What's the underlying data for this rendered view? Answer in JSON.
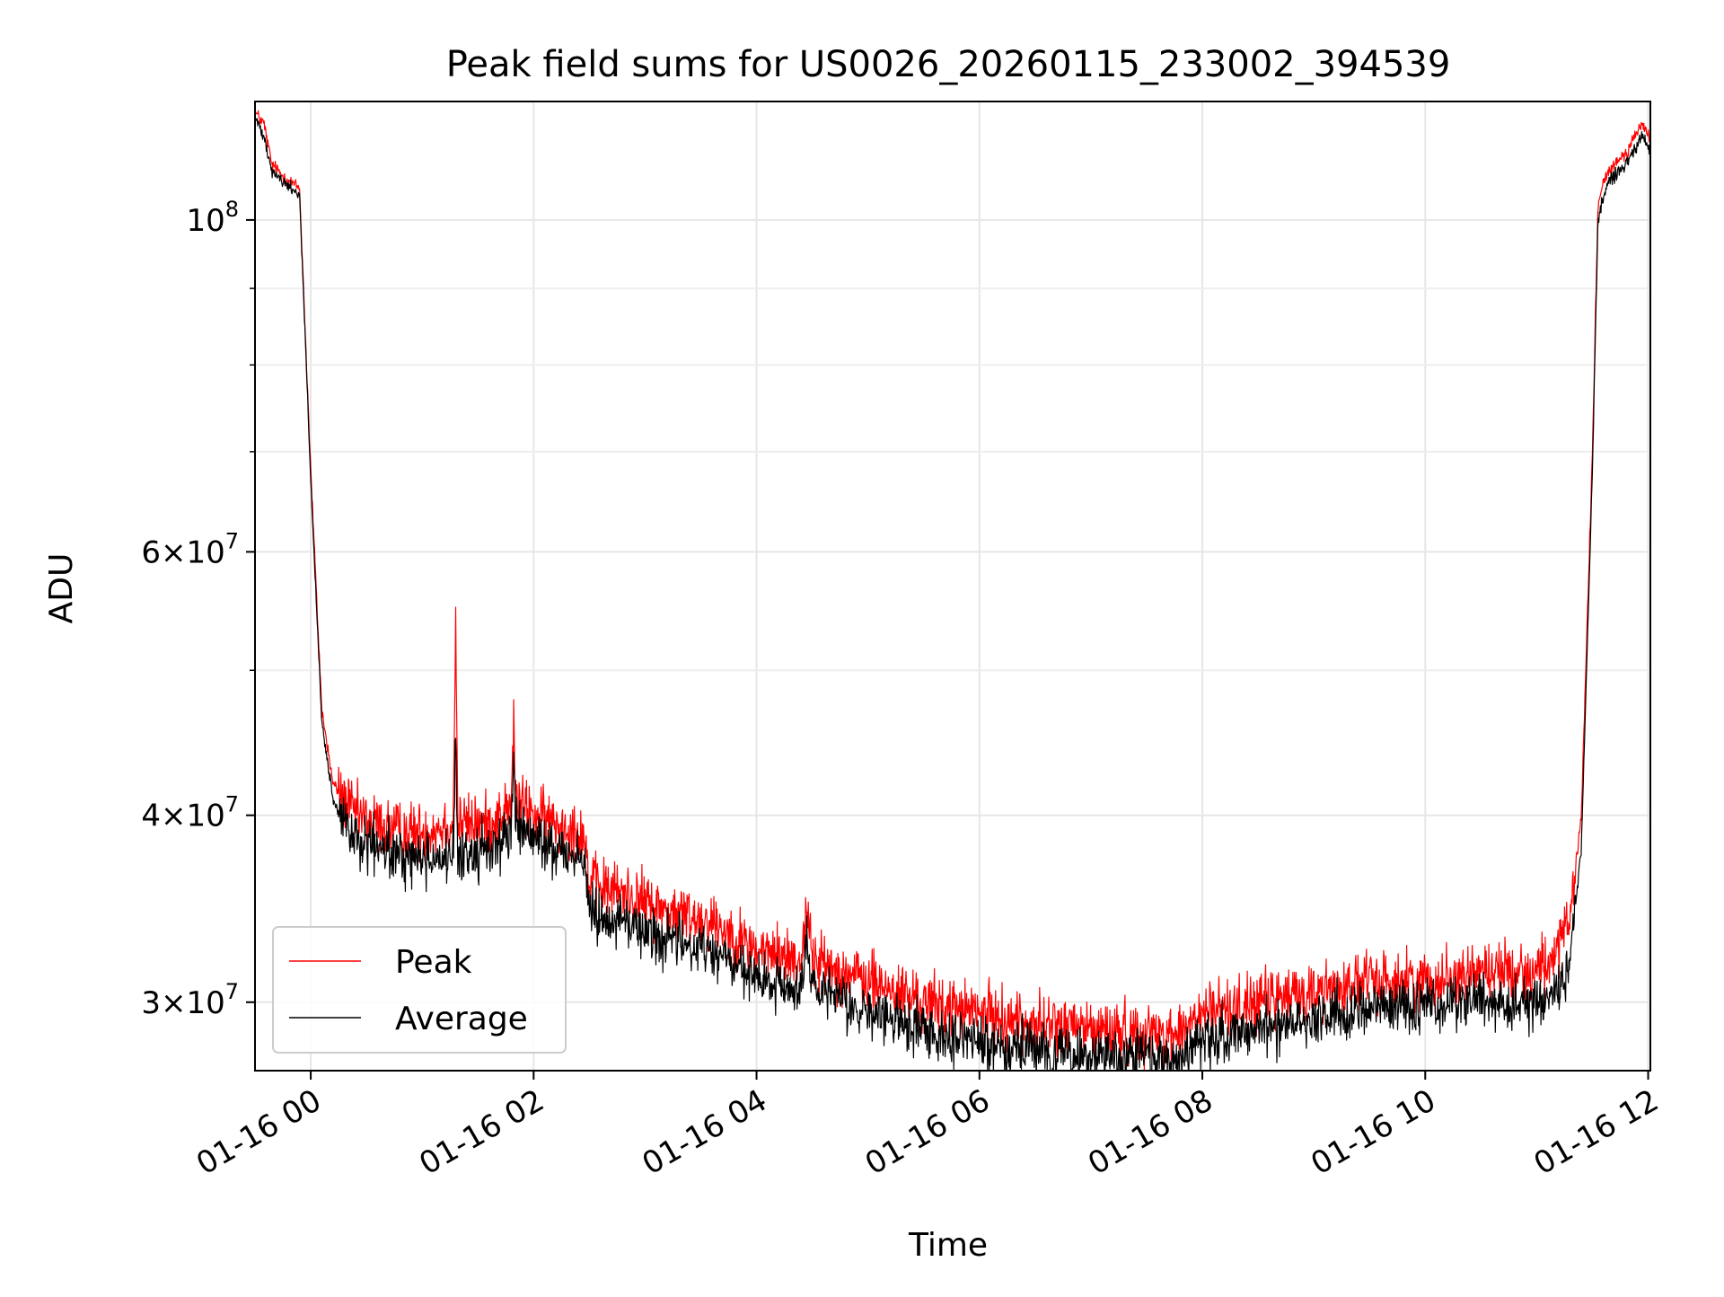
{
  "chart_data": {
    "type": "line",
    "title": "Peak field sums for US0026_20260115_233002_394539",
    "xlabel": "Time",
    "ylabel": "ADU",
    "yscale": "log",
    "grid": true,
    "legend_position": "lower-left",
    "xlim": [
      -0.5,
      12.02
    ],
    "ylim": [
      27000000,
      120000000
    ],
    "x_ticks": [
      {
        "value": 0,
        "label": "01-16 00"
      },
      {
        "value": 2,
        "label": "01-16 02"
      },
      {
        "value": 4,
        "label": "01-16 04"
      },
      {
        "value": 6,
        "label": "01-16 06"
      },
      {
        "value": 8,
        "label": "01-16 08"
      },
      {
        "value": 10,
        "label": "01-16 10"
      },
      {
        "value": 12,
        "label": "01-16 12"
      }
    ],
    "y_major_ticks": [
      {
        "value": 30000000,
        "mant": "3",
        "exp": "7"
      },
      {
        "value": 40000000,
        "mant": "4",
        "exp": "7"
      },
      {
        "value": 60000000,
        "mant": "6",
        "exp": "7"
      },
      {
        "value": 100000000,
        "mant": "",
        "exp": "8"
      }
    ],
    "y_minor_ticks": [
      50000000,
      70000000,
      80000000,
      90000000
    ],
    "series": [
      {
        "name": "Peak",
        "color": "#ff0000",
        "x": [
          -0.5,
          -0.42,
          -0.35,
          -0.25,
          -0.1,
          0.0,
          0.1,
          0.2,
          0.25,
          0.4,
          0.6,
          0.8,
          1.0,
          1.28,
          1.3,
          1.32,
          1.6,
          1.8,
          1.82,
          1.84,
          2.0,
          2.2,
          2.45,
          2.5,
          2.8,
          3.2,
          3.6,
          4.0,
          4.4,
          4.45,
          4.5,
          5.0,
          5.5,
          6.0,
          6.5,
          7.0,
          7.5,
          7.8,
          8.0,
          8.5,
          9.0,
          9.5,
          10.0,
          10.5,
          11.0,
          11.2,
          11.3,
          11.4,
          11.5,
          11.55,
          11.6,
          11.65,
          11.8,
          11.95,
          12.02
        ],
        "y": [
          118000000,
          116000000,
          109000000,
          107000000,
          105000000,
          68000000,
          47000000,
          42000000,
          41500000,
          40000000,
          39500000,
          39000000,
          39000000,
          39500000,
          55000000,
          39500000,
          39500000,
          40500000,
          46000000,
          41000000,
          40000000,
          39500000,
          39000000,
          36000000,
          35500000,
          34500000,
          34000000,
          32500000,
          32000000,
          35000000,
          32000000,
          31000000,
          30000000,
          29500000,
          29000000,
          28800000,
          28600000,
          28600000,
          29500000,
          30000000,
          30500000,
          31000000,
          31000000,
          31500000,
          31500000,
          32500000,
          34000000,
          40000000,
          70000000,
          102000000,
          106000000,
          108000000,
          111000000,
          116000000,
          113000000
        ]
      },
      {
        "name": "Average",
        "color": "#000000",
        "x": [
          -0.5,
          -0.42,
          -0.35,
          -0.25,
          -0.1,
          0.0,
          0.1,
          0.2,
          0.25,
          0.4,
          0.6,
          0.8,
          1.0,
          1.28,
          1.3,
          1.32,
          1.6,
          1.8,
          1.82,
          1.84,
          2.0,
          2.2,
          2.45,
          2.5,
          2.8,
          3.2,
          3.6,
          4.0,
          4.4,
          4.45,
          4.5,
          5.0,
          5.5,
          6.0,
          6.5,
          7.0,
          7.5,
          7.8,
          8.0,
          8.5,
          9.0,
          9.5,
          10.0,
          10.5,
          11.0,
          11.2,
          11.3,
          11.4,
          11.5,
          11.55,
          11.6,
          11.65,
          11.8,
          11.95,
          12.02
        ],
        "y": [
          117000000,
          114000000,
          108000000,
          106000000,
          104000000,
          67000000,
          46000000,
          41000000,
          40000000,
          38500000,
          38000000,
          37500000,
          37500000,
          37500000,
          44000000,
          37500000,
          38000000,
          39000000,
          44000000,
          39500000,
          38500000,
          38000000,
          37500000,
          34500000,
          34000000,
          33000000,
          32500000,
          31000000,
          30500000,
          33500000,
          30500000,
          29500000,
          28800000,
          28200000,
          27800000,
          27600000,
          27500000,
          27500000,
          28200000,
          28800000,
          29300000,
          29800000,
          29800000,
          30000000,
          30000000,
          30500000,
          32000000,
          38000000,
          68000000,
          100000000,
          104000000,
          106000000,
          109000000,
          114000000,
          111000000
        ]
      }
    ]
  }
}
